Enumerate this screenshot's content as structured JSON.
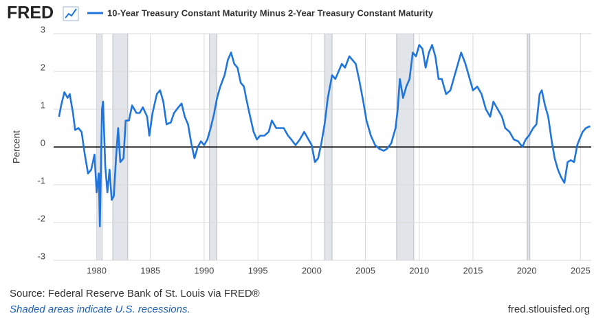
{
  "logo": "FRED",
  "chart_data": {
    "type": "line",
    "series": [
      {
        "name": "10-Year Treasury Constant Maturity Minus 2-Year Treasury Constant Maturity",
        "color": "#1f74dd",
        "values": [
          0.8,
          1.1,
          1.45,
          1.3,
          1.4,
          0.9,
          0.45,
          0.5,
          0.4,
          -0.2,
          -0.7,
          -0.6,
          -0.2,
          -1.2,
          -0.7,
          -2.1,
          1.0,
          1.2,
          -0.5,
          -1.2,
          -0.6,
          -1.4,
          -1.3,
          -0.3,
          0.5,
          -0.4,
          -0.3,
          0.7,
          0.7,
          1.1,
          0.9,
          0.9,
          1.05,
          0.8,
          0.3,
          0.9,
          1.4,
          1.5,
          1.2,
          0.6,
          0.65,
          0.9,
          1.05,
          1.15,
          0.8,
          0.6,
          0.1,
          -0.3,
          0.0,
          0.15,
          0.05,
          0.2,
          0.5,
          0.85,
          1.3,
          1.6,
          1.9,
          2.3,
          2.5,
          2.2,
          2.1,
          1.7,
          1.6,
          1.3,
          0.9,
          0.4,
          0.2,
          0.3,
          0.3,
          0.4,
          0.7,
          0.5,
          0.5,
          0.5,
          0.3,
          0.2,
          0.05,
          0.2,
          0.4,
          0.2,
          0.05,
          -0.4,
          -0.3,
          0.1,
          0.6,
          1.3,
          1.9,
          1.8,
          2.0,
          2.2,
          2.1,
          2.4,
          2.3,
          2.2,
          1.8,
          1.2,
          0.7,
          0.3,
          0.05,
          -0.05,
          -0.1,
          -0.05,
          0.1,
          0.5,
          1.0,
          1.8,
          1.3,
          1.6,
          1.8,
          2.5,
          2.4,
          2.7,
          2.6,
          2.1,
          2.5,
          2.7,
          2.4,
          1.8,
          1.8,
          1.4,
          1.5,
          1.8,
          2.2,
          2.5,
          2.2,
          1.8,
          1.5,
          1.6,
          1.4,
          1.0,
          0.8,
          1.2,
          1.0,
          0.8,
          0.5,
          0.4,
          0.2,
          0.15,
          0.0,
          0.2,
          0.3,
          0.5,
          0.6,
          1.4,
          1.5,
          1.1,
          0.8,
          0.2,
          -0.3,
          -0.6,
          -0.8,
          -0.95,
          -0.4,
          -0.35,
          -0.4,
          0.05,
          0.2,
          0.4,
          0.5,
          0.55
        ]
      }
    ],
    "x": [
      1976.5,
      1976.7,
      1977.0,
      1977.3,
      1977.5,
      1977.8,
      1978.0,
      1978.3,
      1978.6,
      1978.9,
      1979.2,
      1979.5,
      1979.8,
      1980.0,
      1980.2,
      1980.3,
      1980.5,
      1980.6,
      1980.8,
      1981.0,
      1981.2,
      1981.4,
      1981.6,
      1981.8,
      1982.0,
      1982.2,
      1982.5,
      1982.7,
      1983.0,
      1983.3,
      1983.7,
      1984.0,
      1984.3,
      1984.7,
      1984.9,
      1985.2,
      1985.6,
      1985.9,
      1986.2,
      1986.5,
      1986.9,
      1987.2,
      1987.6,
      1987.9,
      1988.2,
      1988.5,
      1988.8,
      1989.1,
      1989.4,
      1989.7,
      1990.0,
      1990.3,
      1990.6,
      1990.9,
      1991.2,
      1991.5,
      1991.9,
      1992.2,
      1992.5,
      1992.8,
      1993.1,
      1993.4,
      1993.7,
      1993.9,
      1994.2,
      1994.6,
      1994.9,
      1995.2,
      1995.6,
      1996.0,
      1996.3,
      1996.7,
      1997.0,
      1997.4,
      1997.8,
      1998.1,
      1998.5,
      1998.9,
      1999.3,
      1999.7,
      2000.0,
      2000.3,
      2000.6,
      2000.9,
      2001.2,
      2001.5,
      2001.9,
      2002.2,
      2002.5,
      2002.8,
      2003.1,
      2003.5,
      2003.8,
      2004.1,
      2004.4,
      2004.8,
      2005.1,
      2005.5,
      2005.9,
      2006.3,
      2006.7,
      2007.0,
      2007.4,
      2007.8,
      2008.0,
      2008.2,
      2008.5,
      2008.8,
      2009.1,
      2009.4,
      2009.7,
      2010.0,
      2010.3,
      2010.6,
      2010.9,
      2011.2,
      2011.5,
      2011.8,
      2012.1,
      2012.5,
      2012.9,
      2013.2,
      2013.6,
      2013.9,
      2014.3,
      2014.7,
      2015.0,
      2015.4,
      2015.8,
      2016.2,
      2016.6,
      2016.9,
      2017.3,
      2017.7,
      2018.0,
      2018.4,
      2018.8,
      2019.2,
      2019.6,
      2019.9,
      2020.2,
      2020.6,
      2020.9,
      2021.2,
      2021.4,
      2021.7,
      2022.0,
      2022.3,
      2022.6,
      2022.9,
      2023.2,
      2023.5,
      2023.8,
      2024.1,
      2024.4,
      2024.7,
      2024.9,
      2025.2,
      2025.5,
      2025.9
    ],
    "xlim": [
      1976,
      2026
    ],
    "ylim": [
      -3,
      3
    ],
    "xticks": [
      1980,
      1985,
      1990,
      1995,
      2000,
      2005,
      2010,
      2015,
      2020,
      2025
    ],
    "yticks": [
      -3,
      -2,
      -1,
      0,
      1,
      2,
      3
    ],
    "y_label": "Percent",
    "grid": true,
    "recessions": [
      [
        1980.0,
        1980.5
      ],
      [
        1981.5,
        1982.9
      ],
      [
        1990.5,
        1991.2
      ],
      [
        2001.2,
        2001.9
      ],
      [
        2007.9,
        2009.5
      ],
      [
        2020.1,
        2020.3
      ]
    ],
    "source": "Source: Federal Reserve Bank of St. Louis via FRED®",
    "note": "Shaded areas indicate U.S. recessions.",
    "url": "fred.stlouisfed.org"
  }
}
